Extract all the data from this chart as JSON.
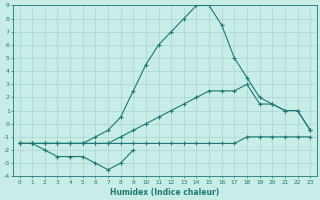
{
  "xlabel": "Humidex (Indice chaleur)",
  "x": [
    0,
    1,
    2,
    3,
    4,
    5,
    6,
    7,
    8,
    9,
    10,
    11,
    12,
    13,
    14,
    15,
    16,
    17,
    18,
    19,
    20,
    21,
    22,
    23
  ],
  "line_peak": [
    -1.5,
    -1.5,
    -1.5,
    -1.5,
    -1.5,
    -1.5,
    -1.0,
    -0.5,
    0.5,
    2.5,
    4.5,
    6.0,
    7.0,
    8.0,
    9.0,
    9.0,
    7.5,
    5.0,
    3.5,
    2.0,
    1.5,
    1.0,
    1.0,
    -0.5
  ],
  "line_mid": [
    -1.5,
    -1.5,
    -1.5,
    -1.5,
    -1.5,
    -1.5,
    -1.5,
    -1.5,
    -1.0,
    -0.5,
    0.0,
    0.5,
    1.0,
    1.5,
    2.0,
    2.5,
    2.5,
    2.5,
    3.0,
    1.5,
    1.5,
    1.0,
    1.0,
    -0.5
  ],
  "line_flat": [
    -1.5,
    -1.5,
    -1.5,
    -1.5,
    -1.5,
    -1.5,
    -1.5,
    -1.5,
    -1.5,
    -1.5,
    -1.5,
    -1.5,
    -1.5,
    -1.5,
    -1.5,
    -1.5,
    -1.5,
    -1.5,
    -1.0,
    -1.0,
    -1.0,
    -1.0,
    -1.0,
    -1.0
  ],
  "line_dip": [
    -1.5,
    -1.5,
    -2.0,
    -2.5,
    -2.5,
    -2.5,
    -3.0,
    -3.5,
    -3.0,
    -2.0,
    null,
    null,
    null,
    null,
    null,
    null,
    null,
    null,
    null,
    null,
    null,
    null,
    null,
    null
  ],
  "ylim": [
    -4,
    9
  ],
  "xlim": [
    -0.5,
    23.5
  ],
  "yticks": [
    -4,
    -3,
    -2,
    -1,
    0,
    1,
    2,
    3,
    4,
    5,
    6,
    7,
    8,
    9
  ],
  "xticks": [
    0,
    1,
    2,
    3,
    4,
    5,
    6,
    7,
    8,
    9,
    10,
    11,
    12,
    13,
    14,
    15,
    16,
    17,
    18,
    19,
    20,
    21,
    22,
    23
  ],
  "line_color": "#1a7a6e",
  "bg_color": "#c8ece8",
  "grid_color": "#a8d4d0"
}
